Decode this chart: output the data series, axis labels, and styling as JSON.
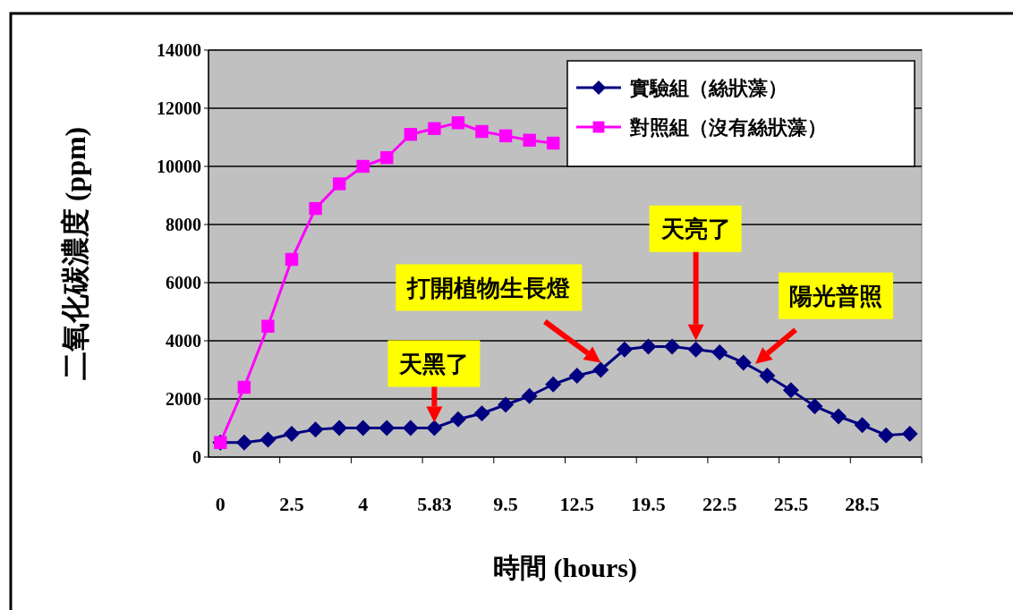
{
  "chart_data": {
    "type": "line",
    "xlabel": "時間 (hours)",
    "ylabel": "二氧化碳濃度 (ppm)",
    "categories": [
      "0",
      null,
      null,
      "2.5",
      null,
      null,
      "4",
      null,
      null,
      "5.83",
      null,
      null,
      "9.5",
      null,
      null,
      "12.5",
      null,
      null,
      "19.5",
      null,
      null,
      "22.5",
      null,
      null,
      "25.5",
      null,
      null,
      "28.5",
      null,
      null
    ],
    "series": [
      {
        "name": "實驗組（絲狀藻）",
        "color": "#000080",
        "marker": "diamond",
        "values": [
          500,
          500,
          600,
          800,
          950,
          1000,
          1000,
          1000,
          1000,
          1000,
          1300,
          1500,
          1800,
          2100,
          2500,
          2800,
          3000,
          3700,
          3800,
          3800,
          3700,
          3600,
          3250,
          2800,
          2300,
          1750,
          1400,
          1100,
          750,
          800
        ]
      },
      {
        "name": "對照組（沒有絲狀藻）",
        "color": "#ff00ff",
        "marker": "square",
        "values": [
          500,
          2400,
          4500,
          6800,
          8550,
          9400,
          10000,
          10300,
          11100,
          11300,
          11500,
          11200,
          11050,
          10900,
          10800,
          null,
          null,
          null,
          null,
          null,
          null,
          null,
          null,
          null,
          null,
          null,
          null,
          null,
          null,
          null
        ]
      }
    ],
    "ylim": [
      0,
      14000
    ],
    "yticks": [
      0,
      2000,
      4000,
      6000,
      8000,
      10000,
      12000,
      14000
    ],
    "grid": "y",
    "legend": "top right",
    "annotations": [
      {
        "text": "天黑了",
        "x": "5.83",
        "y": 1000
      },
      "打開植物生長燈",
      "天亮了",
      "陽光普照"
    ]
  }
}
